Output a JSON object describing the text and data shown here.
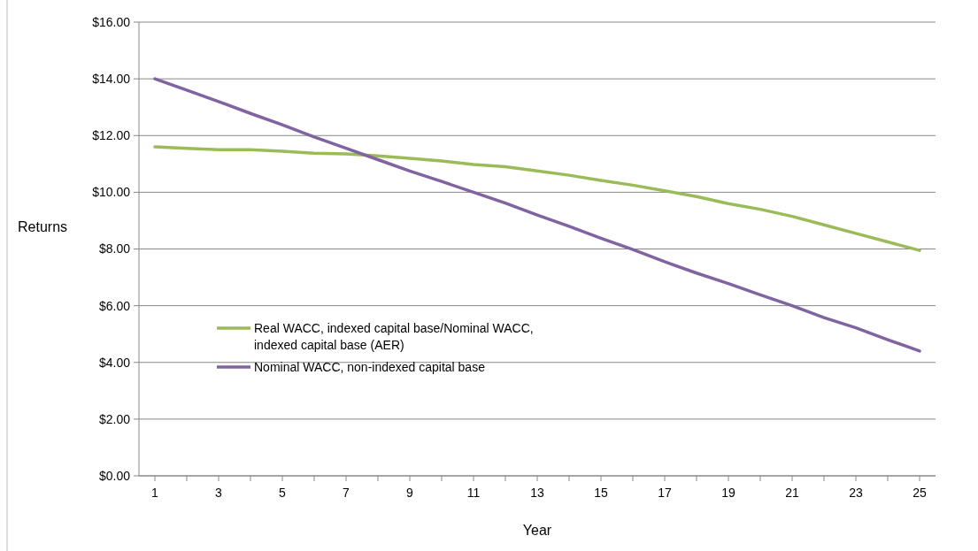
{
  "chart_data": {
    "type": "line",
    "xlabel": "Year",
    "ylabel": "Returns",
    "x": [
      1,
      2,
      3,
      4,
      5,
      6,
      7,
      8,
      9,
      10,
      11,
      12,
      13,
      14,
      15,
      16,
      17,
      18,
      19,
      20,
      21,
      22,
      23,
      24,
      25
    ],
    "series": [
      {
        "name": "Real WACC, indexed capital base/Nominal WACC, indexed capital base (AER)",
        "color": "#9bbb59",
        "values": [
          11.6,
          11.55,
          11.5,
          11.5,
          11.45,
          11.38,
          11.35,
          11.28,
          11.2,
          11.1,
          10.98,
          10.9,
          10.75,
          10.6,
          10.42,
          10.25,
          10.05,
          9.85,
          9.6,
          9.4,
          9.15,
          8.85,
          8.55,
          8.25,
          7.95
        ]
      },
      {
        "name": "Nominal WACC, non-indexed capital base",
        "color": "#8064a2",
        "values": [
          14.0,
          13.6,
          13.2,
          12.78,
          12.38,
          11.95,
          11.55,
          11.15,
          10.75,
          10.38,
          10.0,
          9.62,
          9.2,
          8.8,
          8.38,
          7.98,
          7.55,
          7.15,
          6.78,
          6.38,
          6.0,
          5.58,
          5.22,
          4.8,
          4.4
        ]
      }
    ],
    "xlim": [
      0.5,
      25.5
    ],
    "xticks": [
      1,
      {
        "value": 2,
        "label": null
      },
      3,
      {
        "value": 4,
        "label": null
      },
      5,
      {
        "value": 6,
        "label": null
      },
      7,
      {
        "value": 8,
        "label": null
      },
      9,
      {
        "value": 10,
        "label": null
      },
      11,
      {
        "value": 12,
        "label": null
      },
      13,
      {
        "value": 14,
        "label": null
      },
      15,
      {
        "value": 16,
        "label": null
      },
      17,
      {
        "value": 18,
        "label": null
      },
      19,
      {
        "value": 20,
        "label": null
      },
      21,
      {
        "value": 22,
        "label": null
      },
      23,
      {
        "value": 24,
        "label": null
      },
      25
    ],
    "ylim": [
      0,
      16
    ],
    "yticks": [
      {
        "value": 0,
        "label": "$0.00"
      },
      {
        "value": 2,
        "label": "$2.00"
      },
      {
        "value": 4,
        "label": "$4.00"
      },
      {
        "value": 6,
        "label": "$6.00"
      },
      {
        "value": 8,
        "label": "$8.00"
      },
      {
        "value": 10,
        "label": "$10.00"
      },
      {
        "value": 12,
        "label": "$12.00"
      },
      {
        "value": 14,
        "label": "$14.00"
      },
      {
        "value": 16,
        "label": "$16.00"
      }
    ],
    "grid": "y",
    "legend": "left",
    "marker": "none",
    "line_style": "solid"
  }
}
